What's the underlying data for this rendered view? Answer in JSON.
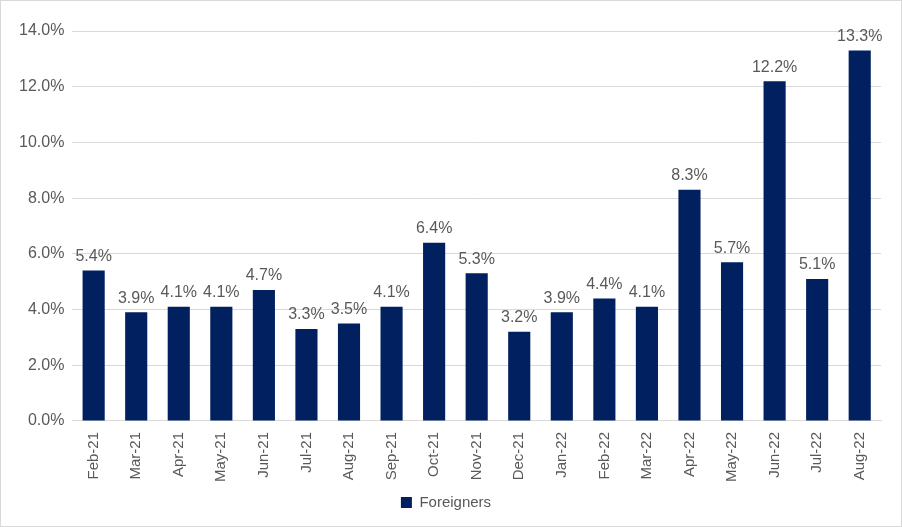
{
  "chart_data": {
    "type": "bar",
    "categories": [
      "Feb-21",
      "Mar-21",
      "Apr-21",
      "May-21",
      "Jun-21",
      "Jul-21",
      "Aug-21",
      "Sep-21",
      "Oct-21",
      "Nov-21",
      "Dec-21",
      "Jan-22",
      "Feb-22",
      "Mar-22",
      "Apr-22",
      "May-22",
      "Jun-22",
      "Jul-22",
      "Aug-22"
    ],
    "series": [
      {
        "name": "Foreigners",
        "color": "#002060",
        "values": [
          5.4,
          3.9,
          4.1,
          4.1,
          4.7,
          3.3,
          3.5,
          4.1,
          6.4,
          5.3,
          3.2,
          3.9,
          4.4,
          4.1,
          8.3,
          5.7,
          12.2,
          5.1,
          13.3
        ],
        "value_labels": [
          "5.4%",
          "3.9%",
          "4.1%",
          "4.1%",
          "4.7%",
          "3.3%",
          "3.5%",
          "4.1%",
          "6.4%",
          "5.3%",
          "3.2%",
          "3.9%",
          "4.4%",
          "4.1%",
          "8.3%",
          "5.7%",
          "12.2%",
          "5.1%",
          "13.3%"
        ]
      }
    ],
    "ylim": [
      0,
      14
    ],
    "yticks": [
      {
        "value": 0,
        "label": "0.0%"
      },
      {
        "value": 2,
        "label": "2.0%"
      },
      {
        "value": 4,
        "label": "4.0%"
      },
      {
        "value": 6,
        "label": "6.0%"
      },
      {
        "value": 8,
        "label": "8.0%"
      },
      {
        "value": 10,
        "label": "10.0%"
      },
      {
        "value": 12,
        "label": "12.0%"
      },
      {
        "value": 14,
        "label": "14.0%"
      }
    ],
    "grid": true,
    "legend": "bottom",
    "data_labels": true
  }
}
